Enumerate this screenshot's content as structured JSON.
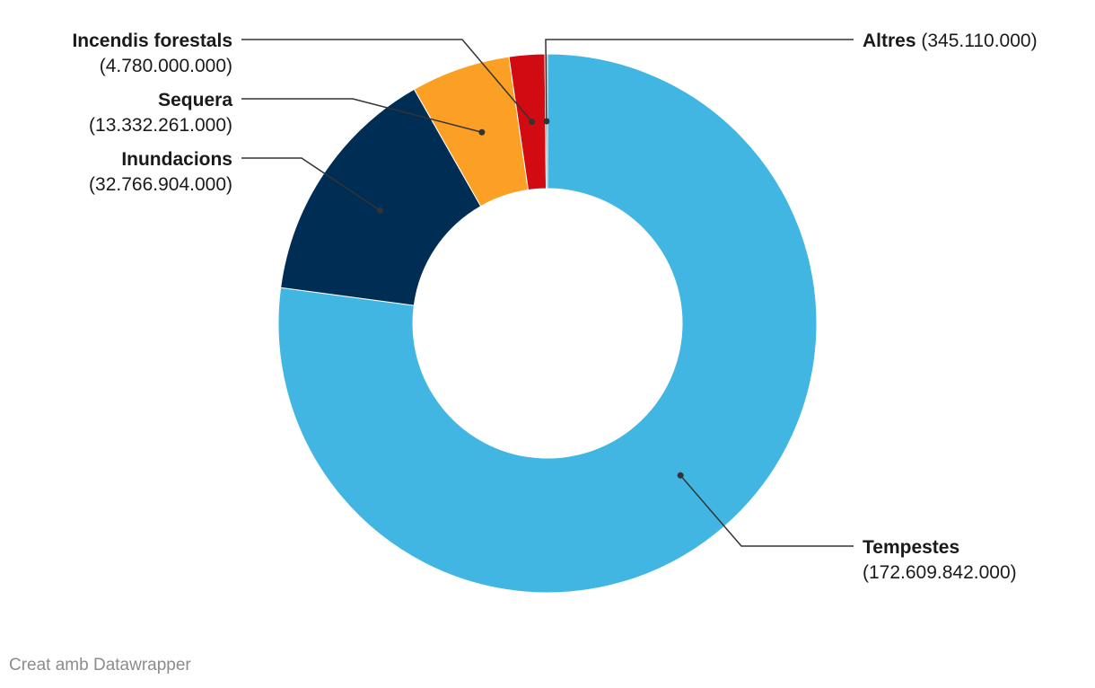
{
  "chart_data": {
    "type": "pie",
    "variant": "donut",
    "categories": [
      "Tempestes",
      "Inundacions",
      "Sequera",
      "Incendis forestals",
      "Altres"
    ],
    "values": [
      172609842000,
      32766904000,
      13332261000,
      4780000000,
      345110000
    ],
    "value_labels": [
      "(172.609.842.000)",
      "(32.766.904.000)",
      "(13.332.261.000)",
      "(4.780.000.000)",
      "(345.110.000)"
    ],
    "colors": [
      "#41b6e2",
      "#002d54",
      "#fba024",
      "#d20a11",
      "#8c8c8c"
    ],
    "title": "",
    "legend": "none"
  },
  "footer": {
    "credit": "Creat amb Datawrapper"
  }
}
